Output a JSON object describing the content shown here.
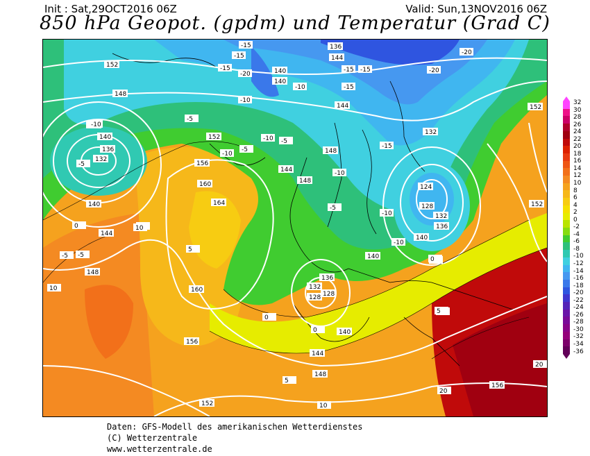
{
  "header": {
    "init": "Init : Sat,29OCT2016 06Z",
    "valid": "Valid: Sun,13NOV2016 06Z",
    "title": "850 hPa Geopot. (gpdm) und Temperatur (Grad C)"
  },
  "legend": {
    "labels": [
      "32",
      "30",
      "28",
      "26",
      "24",
      "22",
      "20",
      "18",
      "16",
      "14",
      "12",
      "10",
      "8",
      "6",
      "4",
      "2",
      "0",
      "-2",
      "-4",
      "-6",
      "-8",
      "-10",
      "-12",
      "-14",
      "-16",
      "-18",
      "-20",
      "-22",
      "-24",
      "-26",
      "-28",
      "-30",
      "-32",
      "-34",
      "-36"
    ],
    "colors": [
      "#ff44ff",
      "#ee1188",
      "#cc0066",
      "#b0002a",
      "#a00010",
      "#c00a0a",
      "#dd2000",
      "#e83a10",
      "#ee5514",
      "#f2701a",
      "#f48a22",
      "#f5a21e",
      "#f6b81a",
      "#f7cc12",
      "#f5e000",
      "#e6ec00",
      "#b8e400",
      "#86dc10",
      "#40cc30",
      "#2ec07a",
      "#30c9b2",
      "#40d0e0",
      "#40b6f0",
      "#4698f0",
      "#3a78ea",
      "#2f55e0",
      "#3f36cf",
      "#5424b8",
      "#6a14a8",
      "#7a0a98",
      "#880488",
      "#94007a",
      "#7c006a",
      "#620058"
    ]
  },
  "map_labels": {
    "geopotential": [
      "152",
      "148",
      "144",
      "140",
      "136",
      "132",
      "128",
      "124",
      "156",
      "160",
      "164",
      "160",
      "152",
      "148",
      "144",
      "140",
      "136",
      "132",
      "128",
      "140",
      "144",
      "148",
      "152",
      "156",
      "152",
      "148",
      "156",
      "144",
      "140",
      "136",
      "132",
      "128",
      "140",
      "136",
      "132",
      "144",
      "144",
      "140",
      "148",
      "152",
      "140"
    ],
    "temperature": [
      "-15",
      "-15",
      "-15",
      "-20",
      "-15",
      "-10",
      "-15",
      "-10",
      "-5",
      "-10",
      "-5",
      "-5",
      "-5",
      "0",
      "-10",
      "-5",
      "0",
      "5",
      "10",
      "-5",
      "10",
      "5",
      "0",
      "-10",
      "-15",
      "-10",
      "-20",
      "-10",
      "-5",
      "0",
      "5",
      "10",
      "20",
      "20",
      "-15",
      "-20",
      "0",
      "-10",
      "5",
      "10"
    ]
  },
  "footer": {
    "line1": "Daten: GFS-Modell des amerikanischen Wetterdienstes",
    "line2": "(C) Wetterzentrale",
    "line3": "www.wetterzentrale.de"
  }
}
